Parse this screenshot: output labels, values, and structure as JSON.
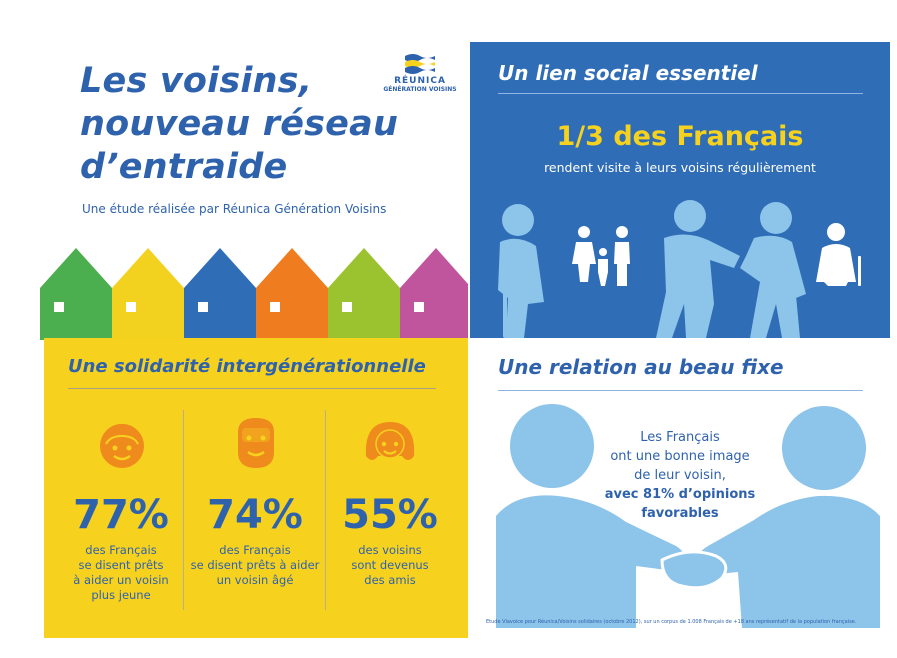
{
  "header": {
    "title_lines": [
      "Les voisins,",
      "nouveau réseau",
      "d’entraide"
    ],
    "subtitle": "Une étude réalisée par Réunica Génération Voisins"
  },
  "logo": {
    "top_text": "RÉUNICA",
    "bottom_text": "GÉNÉRATION VOISINS"
  },
  "social": {
    "heading": "Un lien social essentiel",
    "stat": "1/3 des Français",
    "stat_caption": "rendent visite à leurs voisins régulièrement"
  },
  "solidarity": {
    "heading": "Une solidarité intergénérationnelle",
    "items": [
      {
        "icon": "boy-face-icon",
        "percent": "77%",
        "caption_lines": [
          "des Français",
          "se disent prêts",
          "à aider un voisin",
          "plus jeune"
        ]
      },
      {
        "icon": "bearded-man-face-icon",
        "percent": "74%",
        "caption_lines": [
          "des Français",
          "se disent prêts à aider",
          "un voisin âgé"
        ]
      },
      {
        "icon": "woman-face-icon",
        "percent": "55%",
        "caption_lines": [
          "des voisins",
          "sont devenus",
          "des amis"
        ]
      }
    ]
  },
  "relation": {
    "heading": "Une relation au beau fixe",
    "text_lines": [
      "Les Français",
      "ont une bonne image",
      "de leur voisin,"
    ],
    "bold_lines": [
      "avec 81% d’opinions",
      "favorables"
    ],
    "footnote": "Etude Viavoice pour Réunica/Voisins solidaires (octobre 2012), sur un corpus de 1.008 Français de +18 ans représentatif de la population française."
  },
  "colors": {
    "blue": "#2f62ad",
    "panel_blue": "#2f6db7",
    "light_blue": "#8cc4ea",
    "yellow": "#f6d21f",
    "orange": "#ef8a1c",
    "house_green": "#4caf4f",
    "house_yellow": "#f3d21f",
    "house_blue": "#2f6db7",
    "house_orange": "#ef7d1f",
    "house_lime": "#9bc22f",
    "house_magenta": "#c0559d"
  }
}
